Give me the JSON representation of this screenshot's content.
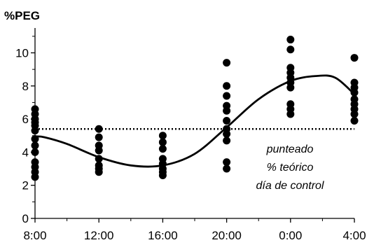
{
  "chart_data": {
    "type": "scatter",
    "ylabel": "%PEG",
    "xlabel": "",
    "categories": [
      "8:00",
      "12:00",
      "16:00",
      "20:00",
      "0:00",
      "4:00"
    ],
    "y_ticks": [
      "0",
      "2",
      "4",
      "6",
      "8",
      "10"
    ],
    "ylim": [
      0,
      11.5
    ],
    "grid": false,
    "series": [
      {
        "points": [
          {
            "x": "8:00",
            "y": 6.6
          },
          {
            "x": "8:00",
            "y": 6.3
          },
          {
            "x": "8:00",
            "y": 6.0
          },
          {
            "x": "8:00",
            "y": 5.8
          },
          {
            "x": "8:00",
            "y": 5.6
          },
          {
            "x": "8:00",
            "y": 5.3
          },
          {
            "x": "8:00",
            "y": 4.8
          },
          {
            "x": "8:00",
            "y": 4.4
          },
          {
            "x": "8:00",
            "y": 4.0
          },
          {
            "x": "8:00",
            "y": 3.4
          },
          {
            "x": "8:00",
            "y": 3.1
          },
          {
            "x": "8:00",
            "y": 2.8
          },
          {
            "x": "8:00",
            "y": 2.5
          },
          {
            "x": "12:00",
            "y": 5.4
          },
          {
            "x": "12:00",
            "y": 4.9
          },
          {
            "x": "12:00",
            "y": 4.4
          },
          {
            "x": "12:00",
            "y": 4.1
          },
          {
            "x": "12:00",
            "y": 3.6
          },
          {
            "x": "12:00",
            "y": 3.2
          },
          {
            "x": "12:00",
            "y": 3.0
          },
          {
            "x": "12:00",
            "y": 2.8
          },
          {
            "x": "16:00",
            "y": 5.0
          },
          {
            "x": "16:00",
            "y": 4.6
          },
          {
            "x": "16:00",
            "y": 4.2
          },
          {
            "x": "16:00",
            "y": 3.6
          },
          {
            "x": "16:00",
            "y": 3.3
          },
          {
            "x": "16:00",
            "y": 3.0
          },
          {
            "x": "16:00",
            "y": 2.8
          },
          {
            "x": "16:00",
            "y": 2.6
          },
          {
            "x": "20:00",
            "y": 9.4
          },
          {
            "x": "20:00",
            "y": 8.0
          },
          {
            "x": "20:00",
            "y": 7.4
          },
          {
            "x": "20:00",
            "y": 6.8
          },
          {
            "x": "20:00",
            "y": 6.5
          },
          {
            "x": "20:00",
            "y": 5.9
          },
          {
            "x": "20:00",
            "y": 5.4
          },
          {
            "x": "20:00",
            "y": 5.1
          },
          {
            "x": "20:00",
            "y": 4.7
          },
          {
            "x": "20:00",
            "y": 3.4
          },
          {
            "x": "20:00",
            "y": 3.0
          },
          {
            "x": "0:00",
            "y": 10.8
          },
          {
            "x": "0:00",
            "y": 10.2
          },
          {
            "x": "0:00",
            "y": 9.1
          },
          {
            "x": "0:00",
            "y": 8.8
          },
          {
            "x": "0:00",
            "y": 8.5
          },
          {
            "x": "0:00",
            "y": 8.2
          },
          {
            "x": "0:00",
            "y": 7.9
          },
          {
            "x": "0:00",
            "y": 6.9
          },
          {
            "x": "0:00",
            "y": 6.6
          },
          {
            "x": "0:00",
            "y": 6.3
          },
          {
            "x": "4:00",
            "y": 9.7
          },
          {
            "x": "4:00",
            "y": 8.2
          },
          {
            "x": "4:00",
            "y": 7.9
          },
          {
            "x": "4:00",
            "y": 7.6
          },
          {
            "x": "4:00",
            "y": 7.2
          },
          {
            "x": "4:00",
            "y": 6.9
          },
          {
            "x": "4:00",
            "y": 6.6
          },
          {
            "x": "4:00",
            "y": 6.3
          },
          {
            "x": "4:00",
            "y": 5.9
          }
        ]
      }
    ],
    "fit_curve": {
      "style": "solid",
      "points": [
        {
          "x": 0,
          "y": 4.95
        },
        {
          "x": 0.15,
          "y": 4.9
        },
        {
          "x": 0.5,
          "y": 4.5
        },
        {
          "x": 1.0,
          "y": 3.7
        },
        {
          "x": 1.5,
          "y": 3.2
        },
        {
          "x": 2.0,
          "y": 3.2
        },
        {
          "x": 2.5,
          "y": 3.9
        },
        {
          "x": 3.0,
          "y": 5.5
        },
        {
          "x": 3.5,
          "y": 7.2
        },
        {
          "x": 4.0,
          "y": 8.3
        },
        {
          "x": 4.4,
          "y": 8.6
        },
        {
          "x": 4.7,
          "y": 8.5
        },
        {
          "x": 5.0,
          "y": 7.5
        }
      ]
    },
    "reference_line": {
      "y": 5.4,
      "style": "dotted"
    },
    "annotations": [
      "punteado",
      "% teórico",
      "día de control"
    ]
  }
}
